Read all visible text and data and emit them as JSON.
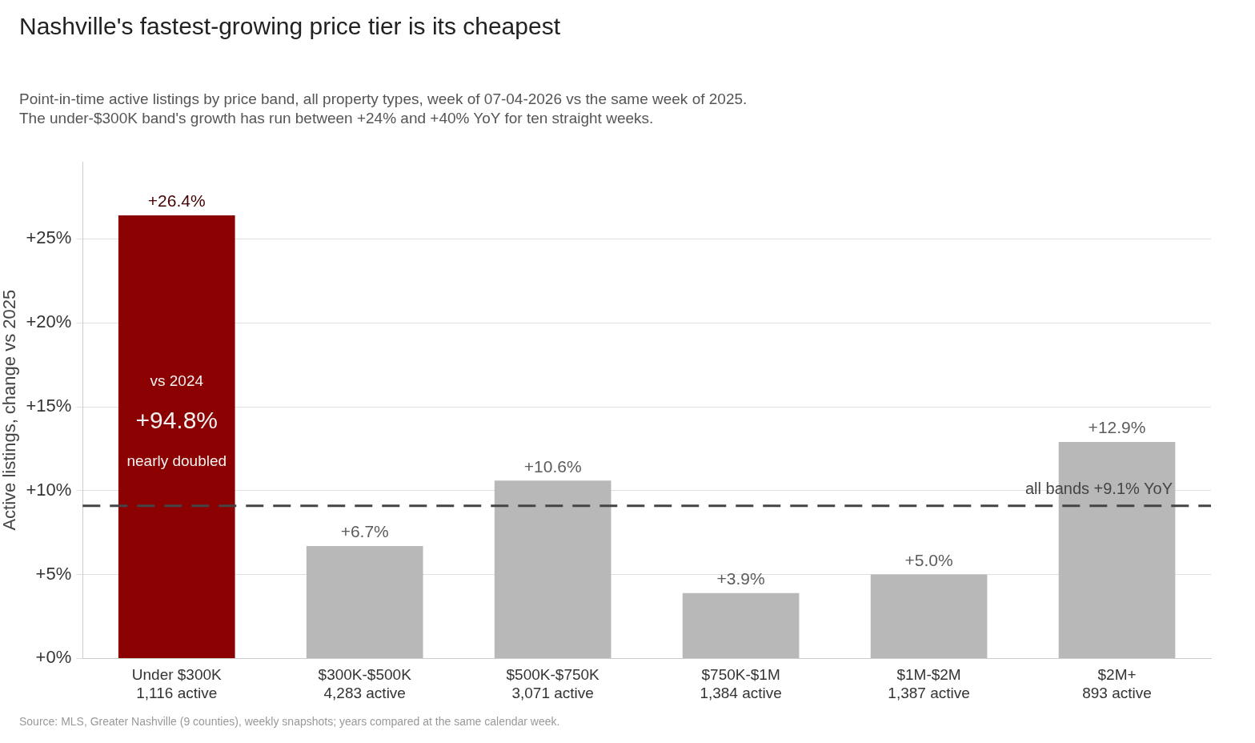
{
  "chart_data": {
    "type": "bar",
    "title": "Nashville's fastest-growing price tier is its cheapest",
    "subtitle": "Point-in-time active listings by price band, all property types, week of 07-04-2026 vs the same week of 2025.\nThe under-$300K band's growth has run between +24% and +40% YoY for ten straight weeks.",
    "ylabel": "Active listings, change vs 2025",
    "categories": [
      "Under $300K\n1,116 active",
      "$300K-$500K\n4,283 active",
      "$500K-$750K\n3,071 active",
      "$750K-$1M\n1,384 active",
      "$1M-$2M\n1,387 active",
      "$2M+\n893 active"
    ],
    "values": [
      26.4,
      6.7,
      10.6,
      3.9,
      5.0,
      12.9
    ],
    "colors": [
      "#8b0000",
      "#b8b8b8",
      "#b8b8b8",
      "#b8b8b8",
      "#b8b8b8",
      "#b8b8b8"
    ],
    "value_labels": [
      "+26.4%",
      "+6.7%",
      "+10.6%",
      "+3.9%",
      "+5.0%",
      "+12.9%"
    ],
    "ylim": [
      0,
      29.6
    ],
    "yticks": [
      {
        "value": 0,
        "label": "+0%"
      },
      {
        "value": 5,
        "label": "+5%"
      },
      {
        "value": 10,
        "label": "+10%"
      },
      {
        "value": 15,
        "label": "+15%"
      },
      {
        "value": 20,
        "label": "+20%"
      },
      {
        "value": 25,
        "label": "+25%"
      }
    ],
    "grid": "y",
    "ref_lines": [
      {
        "axis": "y",
        "value": 9.1,
        "label": "all bands +9.1% YoY",
        "color": "#444444",
        "line_style": "dashed"
      }
    ],
    "annotations": [
      "vs 2024",
      "+94.8%",
      "nearly doubled",
      "Source: MLS, Greater Nashville (9 counties), weekly snapshots; years compared at the same calendar week."
    ]
  }
}
